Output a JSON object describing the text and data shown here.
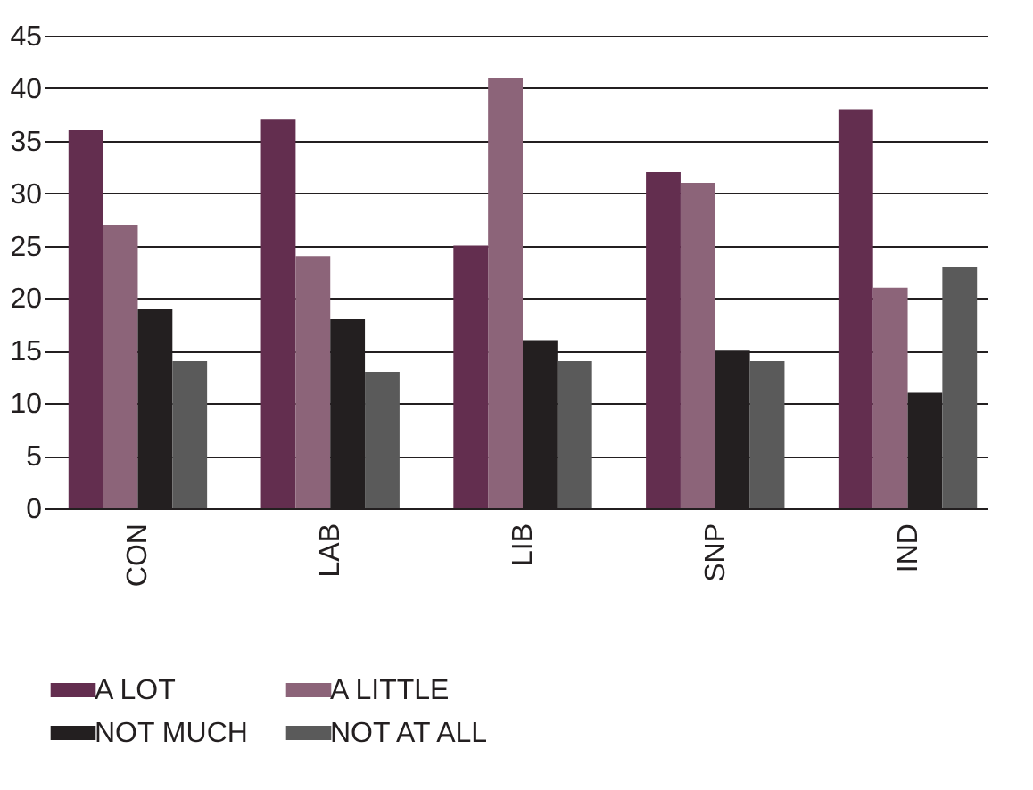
{
  "chart_data": {
    "type": "bar",
    "categories": [
      "CON",
      "LAB",
      "LIB",
      "SNP",
      "IND"
    ],
    "series": [
      {
        "name": "A LOT",
        "color": "#632e4f",
        "values": [
          36,
          37,
          25,
          32,
          38
        ]
      },
      {
        "name": "A LITTLE",
        "color": "#8c6479",
        "values": [
          27,
          24,
          41,
          31,
          21
        ]
      },
      {
        "name": "NOT MUCH",
        "color": "#231f20",
        "values": [
          19,
          18,
          16,
          15,
          11
        ]
      },
      {
        "name": "NOT AT ALL",
        "color": "#5a5a5a",
        "values": [
          14,
          13,
          14,
          14,
          23
        ]
      }
    ],
    "ylim": [
      0,
      45
    ],
    "yticks": [
      0,
      5,
      10,
      15,
      20,
      25,
      30,
      35,
      40,
      45
    ],
    "grid": "y",
    "legend": "bottom"
  }
}
